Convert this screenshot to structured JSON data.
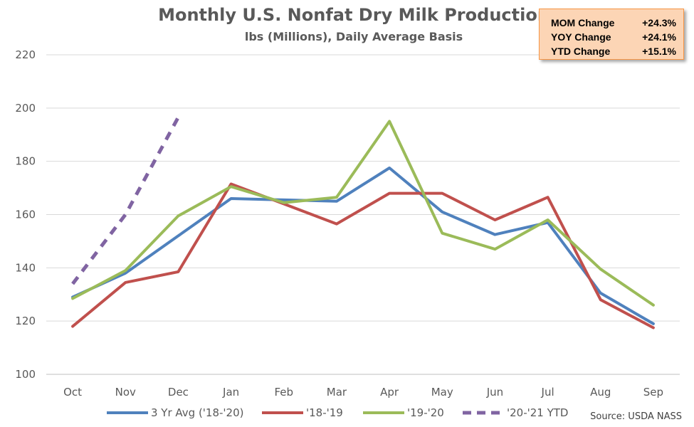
{
  "stats_box": {
    "rows": [
      {
        "label": "MOM Change",
        "value": "+24.3%"
      },
      {
        "label": "YOY Change",
        "value": "+24.1%"
      },
      {
        "label": "YTD Change",
        "value": "+15.1%"
      }
    ],
    "background": "#fcd5b5",
    "border": "#f79646"
  },
  "chart_data": {
    "type": "line",
    "title": "Monthly U.S. Nonfat Dry Milk Production",
    "subtitle": "lbs (Millions), Daily Average Basis",
    "source": "Source: USDA NASS",
    "categories": [
      "Oct",
      "Nov",
      "Dec",
      "Jan",
      "Feb",
      "Mar",
      "Apr",
      "May",
      "Jun",
      "Jul",
      "Aug",
      "Sep"
    ],
    "ylim": [
      100,
      220
    ],
    "yticks": [
      100,
      120,
      140,
      160,
      180,
      200,
      220
    ],
    "grid": true,
    "legend_position": "bottom",
    "series": [
      {
        "name": "3 Yr Avg ('18-'20)",
        "color": "#4f81bd",
        "dashed": false,
        "values": [
          129,
          138,
          152,
          166,
          165.5,
          165,
          177.5,
          161,
          152.5,
          157,
          130.5,
          119
        ]
      },
      {
        "name": "'18-'19",
        "color": "#c0504d",
        "dashed": false,
        "values": [
          118,
          134.5,
          138.5,
          171.5,
          164,
          156.5,
          168,
          168,
          158,
          166.5,
          128,
          117.5
        ]
      },
      {
        "name": "'19-'20",
        "color": "#9bbb59",
        "dashed": false,
        "values": [
          128.5,
          139,
          159.5,
          170.5,
          164.5,
          166.5,
          195,
          153,
          147,
          158,
          139.5,
          126
        ]
      },
      {
        "name": "'20-'21 YTD",
        "color": "#8064a2",
        "dashed": true,
        "values": [
          134,
          160,
          196.5,
          null,
          null,
          null,
          null,
          null,
          null,
          null,
          null,
          null
        ]
      }
    ]
  }
}
